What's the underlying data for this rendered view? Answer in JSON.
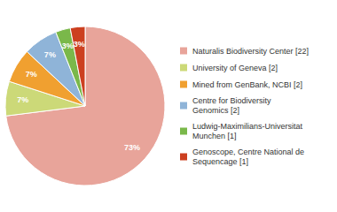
{
  "chart_data": {
    "type": "pie",
    "categories": [
      "Naturalis Biodiversity Center [22]",
      "University of Geneva [2]",
      "Mined from GenBank, NCBI [2]",
      "Centre for Biodiversity\nGenomics [2]",
      "Ludwig-Maximilians-Universitat\nMunchen [1]",
      "Genoscope, Centre National de\nSequencage [1]"
    ],
    "values": [
      73,
      7,
      7,
      7,
      3,
      3
    ],
    "value_labels": [
      "73%",
      "7%",
      "7%",
      "7%",
      "3%",
      "3%"
    ],
    "colors": [
      "#e8a49a",
      "#ccd978",
      "#f0a030",
      "#8fb4d8",
      "#7ab84a",
      "#cc4020"
    ],
    "data_labels": true,
    "legend": "right"
  }
}
